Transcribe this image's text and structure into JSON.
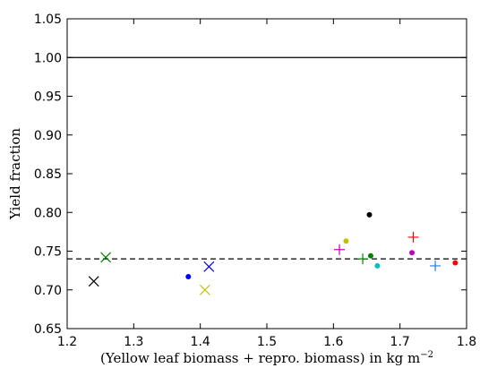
{
  "chart_data": {
    "type": "scatter",
    "xlabel": "(Yellow leaf biomass + repro. biomass) in kg m",
    "xlabel_sup": "−2",
    "ylabel": "Yield fraction",
    "xlim": [
      1.2,
      1.8
    ],
    "ylim": [
      0.65,
      1.05
    ],
    "xticks": [
      1.2,
      1.3,
      1.4,
      1.5,
      1.6,
      1.7,
      1.8
    ],
    "yticks": [
      0.65,
      {
        "value": 0.7,
        "label": "0.70"
      },
      0.75,
      {
        "value": 0.8,
        "label": "0.80"
      },
      0.85,
      {
        "value": 0.9,
        "label": "0.90"
      },
      0.95,
      {
        "value": 1.0,
        "label": "1.00"
      },
      1.05
    ],
    "hlines": [
      {
        "y": 1.0,
        "style": "solid"
      },
      {
        "y": 0.74,
        "style": "dashed"
      }
    ],
    "series": [
      {
        "color": "#000000",
        "marker": "x",
        "x": [
          1.24
        ],
        "values": [
          0.711
        ]
      },
      {
        "color": "#008000",
        "marker": "x",
        "x": [
          1.258
        ],
        "values": [
          0.742
        ]
      },
      {
        "color": "#0000ff",
        "marker": "o",
        "x": [
          1.382
        ],
        "values": [
          0.717
        ]
      },
      {
        "color": "#0000ff",
        "marker": "x",
        "x": [
          1.413
        ],
        "values": [
          0.73
        ]
      },
      {
        "color": "#bfbf00",
        "marker": "x",
        "x": [
          1.407
        ],
        "values": [
          0.7
        ]
      },
      {
        "color": "#bf00bf",
        "marker": "+",
        "x": [
          1.609
        ],
        "values": [
          0.752
        ]
      },
      {
        "color": "#bfbf00",
        "marker": "o",
        "x": [
          1.619
        ],
        "values": [
          0.763
        ]
      },
      {
        "color": "#000000",
        "marker": "o",
        "x": [
          1.654
        ],
        "values": [
          0.797
        ]
      },
      {
        "color": "#008000",
        "marker": "+",
        "x": [
          1.644
        ],
        "values": [
          0.74
        ]
      },
      {
        "color": "#008000",
        "marker": "o",
        "x": [
          1.656
        ],
        "values": [
          0.744
        ]
      },
      {
        "color": "#00bfbf",
        "marker": "o",
        "x": [
          1.666
        ],
        "values": [
          0.731
        ]
      },
      {
        "color": "#ff0000",
        "marker": "+",
        "x": [
          1.72
        ],
        "values": [
          0.768
        ]
      },
      {
        "color": "#bf00bf",
        "marker": "o",
        "x": [
          1.718
        ],
        "values": [
          0.748
        ]
      },
      {
        "color": "#1e78ff",
        "marker": "+",
        "x": [
          1.753
        ],
        "values": [
          0.731
        ]
      },
      {
        "color": "#ff0000",
        "marker": "o",
        "x": [
          1.783
        ],
        "values": [
          0.735
        ]
      }
    ]
  }
}
